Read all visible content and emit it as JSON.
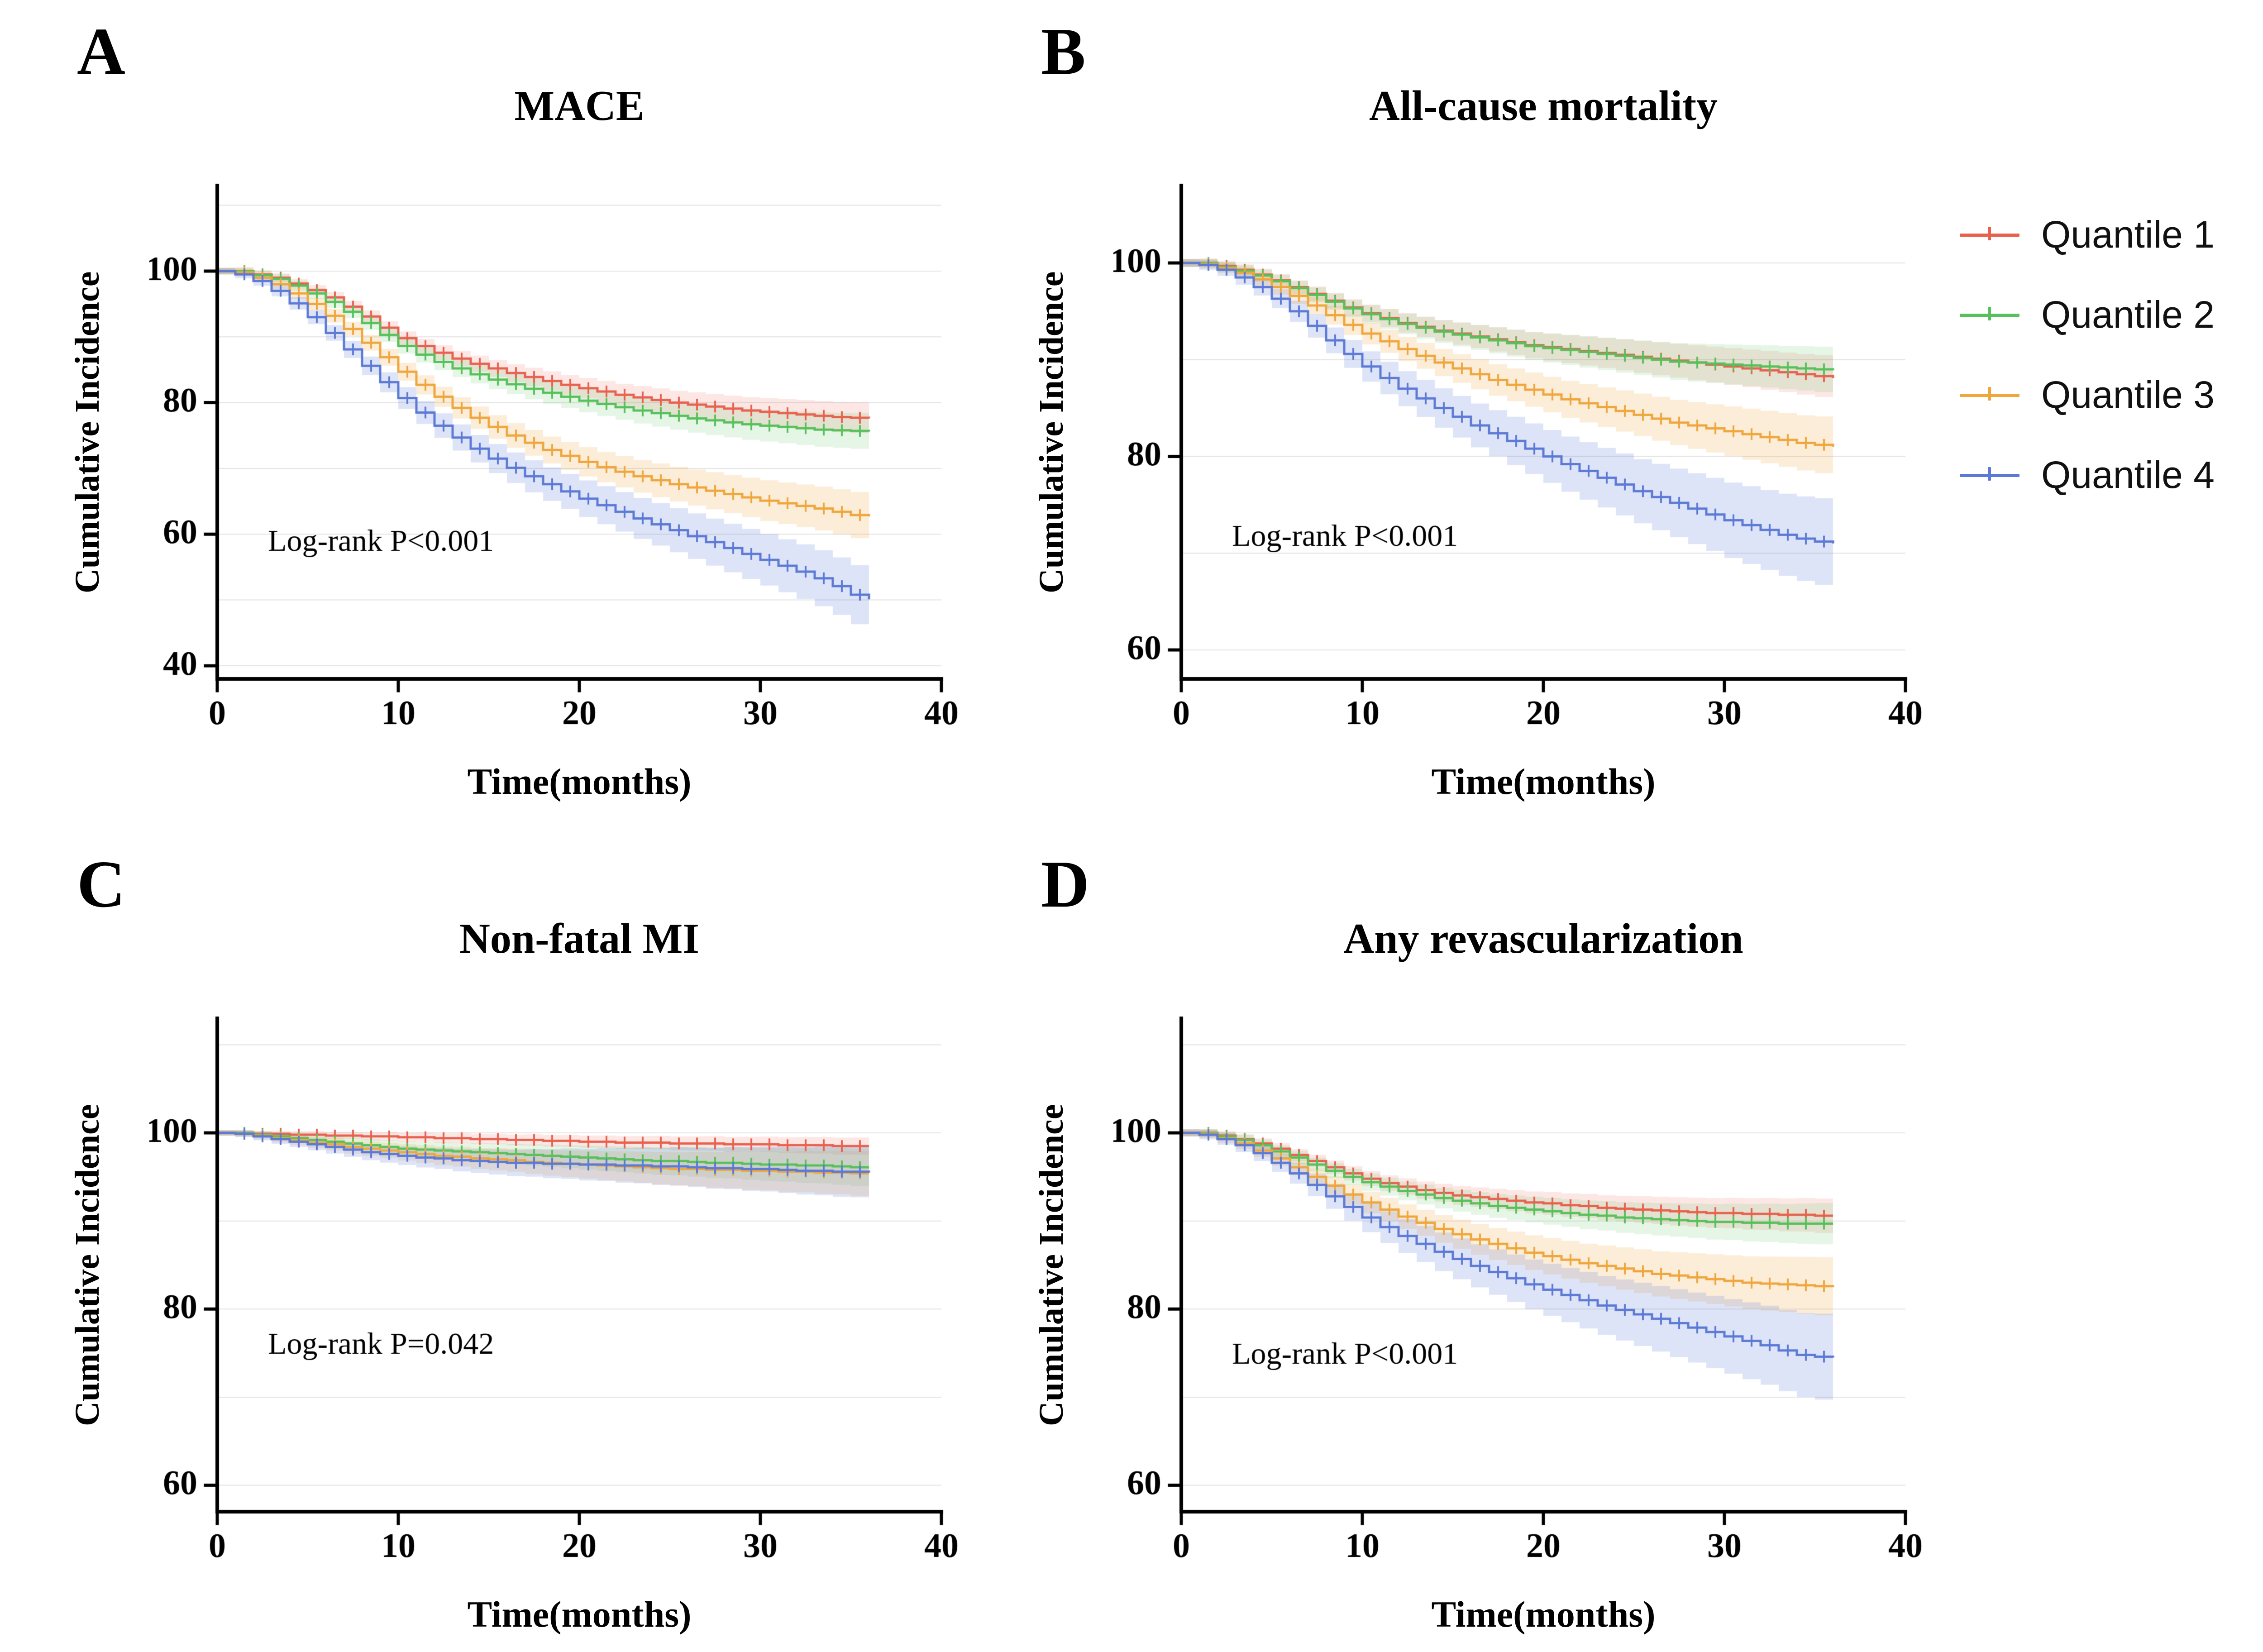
{
  "figure": {
    "background": "#ffffff"
  },
  "legend": {
    "items": [
      {
        "label": "Quantile 1",
        "color": "#E8614F"
      },
      {
        "label": "Quantile 2",
        "color": "#56C15A"
      },
      {
        "label": "Quantile 3",
        "color": "#EFA63C"
      },
      {
        "label": "Quantile 4",
        "color": "#5B79D6"
      }
    ]
  },
  "chart_data": [
    {
      "type": "line",
      "letter": "A",
      "title": "MACE",
      "xlabel": "Time(months)",
      "ylabel": "Cumulative Incidence",
      "pvalue": "Log-rank P<0.001",
      "pvalue_pos": {
        "fx": 0.07,
        "fy": 0.74
      },
      "xlim": [
        0,
        40
      ],
      "xticks": [
        0,
        10,
        20,
        30,
        40
      ],
      "ylim": [
        38,
        113
      ],
      "yticks": [
        40,
        60,
        80,
        100
      ],
      "gridlines": [
        40,
        50,
        60,
        70,
        80,
        90,
        100,
        110
      ],
      "x_unit": "months 0-36, monthly steps",
      "series": [
        {
          "name": "Quantile 1",
          "color": "#E8614F",
          "band": "rgba(232,97,79,0.15)",
          "ci_base": 0.5,
          "ci_end": 2.4,
          "values": [
            100,
            100,
            99.5,
            99,
            98.1,
            97.1,
            96,
            94.6,
            93.1,
            91.4,
            89.8,
            88.6,
            87.6,
            86.7,
            85.9,
            85.2,
            84.5,
            83.9,
            83.3,
            82.7,
            82.2,
            81.7,
            81.2,
            80.8,
            80.4,
            80,
            79.7,
            79.4,
            79.1,
            78.8,
            78.6,
            78.4,
            78.2,
            78,
            77.8,
            77.7,
            77.6
          ]
        },
        {
          "name": "Quantile 2",
          "color": "#56C15A",
          "band": "rgba(86,193,90,0.15)",
          "ci_base": 0.5,
          "ci_end": 2.8,
          "values": [
            100,
            100,
            99.4,
            98.8,
            97.8,
            96.6,
            95.3,
            93.8,
            92.1,
            90.3,
            88.6,
            87.3,
            86.2,
            85.2,
            84.3,
            83.5,
            82.8,
            82.1,
            81.5,
            80.9,
            80.3,
            79.8,
            79.3,
            78.8,
            78.4,
            78,
            77.6,
            77.3,
            77,
            76.7,
            76.5,
            76.3,
            76.1,
            75.9,
            75.8,
            75.7,
            75.6
          ]
        },
        {
          "name": "Quantile 3",
          "color": "#EFA63C",
          "band": "rgba(239,166,60,0.2)",
          "ci_base": 0.5,
          "ci_end": 3.6,
          "values": [
            100,
            99.8,
            99,
            98,
            96.6,
            95,
            93.2,
            91.2,
            89.1,
            86.9,
            84.7,
            82.7,
            80.9,
            79.2,
            77.7,
            76.3,
            75,
            73.9,
            72.8,
            71.9,
            71,
            70.2,
            69.5,
            68.8,
            68.2,
            67.6,
            67.1,
            66.6,
            66.1,
            65.6,
            65.1,
            64.7,
            64.3,
            63.9,
            63.4,
            62.9,
            62.7
          ]
        },
        {
          "name": "Quantile 4",
          "color": "#5B79D6",
          "band": "rgba(91,121,214,0.2)",
          "ci_base": 0.5,
          "ci_end": 4.6,
          "values": [
            100,
            99.5,
            98.5,
            97,
            95.1,
            93,
            90.6,
            88.1,
            85.6,
            83.1,
            80.7,
            78.5,
            76.5,
            74.7,
            73,
            71.5,
            70.1,
            68.8,
            67.6,
            66.5,
            65.4,
            64.4,
            63.4,
            62.4,
            61.5,
            60.6,
            59.7,
            58.8,
            57.9,
            57,
            56.1,
            55.2,
            54.3,
            53.3,
            52.1,
            50.8,
            50.1
          ]
        }
      ]
    },
    {
      "type": "line",
      "letter": "B",
      "title": "All-cause mortality",
      "xlabel": "Time(months)",
      "ylabel": "Cumulative Incidence",
      "pvalue": "Log-rank P<0.001",
      "pvalue_pos": {
        "fx": 0.07,
        "fy": 0.73
      },
      "xlim": [
        0,
        40
      ],
      "xticks": [
        0,
        10,
        20,
        30,
        40
      ],
      "ylim": [
        57,
        108
      ],
      "yticks": [
        60,
        80,
        100
      ],
      "gridlines": [
        60,
        70,
        80,
        90,
        100
      ],
      "x_unit": "months 0-36, monthly steps",
      "series": [
        {
          "name": "Quantile 1",
          "color": "#E8614F",
          "band": "rgba(232,97,79,0.15)",
          "ci_base": 0.4,
          "ci_end": 2.2,
          "values": [
            100,
            100,
            99.7,
            99.3,
            98.8,
            98.2,
            97.5,
            96.8,
            96.1,
            95.4,
            94.8,
            94.3,
            93.8,
            93.4,
            93,
            92.7,
            92.4,
            92.1,
            91.8,
            91.5,
            91.3,
            91.1,
            90.9,
            90.7,
            90.5,
            90.3,
            90.1,
            89.9,
            89.7,
            89.5,
            89.3,
            89.1,
            88.9,
            88.7,
            88.5,
            88.3,
            88.1
          ]
        },
        {
          "name": "Quantile 2",
          "color": "#56C15A",
          "band": "rgba(86,193,90,0.15)",
          "ci_base": 0.4,
          "ci_end": 2.4,
          "values": [
            100,
            100,
            99.6,
            99.2,
            98.7,
            98.1,
            97.4,
            96.7,
            96,
            95.3,
            94.7,
            94.2,
            93.7,
            93.3,
            92.9,
            92.6,
            92.3,
            92,
            91.7,
            91.4,
            91.2,
            91,
            90.8,
            90.6,
            90.4,
            90.2,
            90,
            89.8,
            89.7,
            89.6,
            89.5,
            89.4,
            89.3,
            89.2,
            89.1,
            89,
            88.9
          ]
        },
        {
          "name": "Quantile 3",
          "color": "#EFA63C",
          "band": "rgba(239,166,60,0.2)",
          "ci_base": 0.4,
          "ci_end": 3.0,
          "values": [
            100,
            99.9,
            99.5,
            99,
            98.3,
            97.5,
            96.6,
            95.6,
            94.6,
            93.6,
            92.7,
            91.9,
            91.1,
            90.4,
            89.7,
            89.1,
            88.5,
            87.9,
            87.4,
            86.9,
            86.4,
            85.9,
            85.5,
            85.1,
            84.7,
            84.3,
            83.9,
            83.5,
            83.2,
            82.9,
            82.6,
            82.3,
            82,
            81.7,
            81.4,
            81.2,
            81
          ]
        },
        {
          "name": "Quantile 4",
          "color": "#5B79D6",
          "band": "rgba(91,121,214,0.2)",
          "ci_base": 0.4,
          "ci_end": 4.6,
          "values": [
            100,
            99.8,
            99.3,
            98.5,
            97.5,
            96.3,
            95,
            93.5,
            92,
            90.6,
            89.3,
            88.1,
            87,
            86,
            85,
            84.1,
            83.2,
            82.4,
            81.6,
            80.8,
            80,
            79.2,
            78.5,
            77.8,
            77.1,
            76.4,
            75.8,
            75.2,
            74.6,
            74,
            73.4,
            72.9,
            72.4,
            71.9,
            71.5,
            71.2,
            71
          ]
        }
      ]
    },
    {
      "type": "line",
      "letter": "C",
      "title": "Non-fatal MI",
      "xlabel": "Time(months)",
      "ylabel": "Cumulative Incidence",
      "pvalue": "Log-rank P=0.042",
      "pvalue_pos": {
        "fx": 0.07,
        "fy": 0.68
      },
      "xlim": [
        0,
        40
      ],
      "xticks": [
        0,
        10,
        20,
        30,
        40
      ],
      "ylim": [
        57,
        113
      ],
      "yticks": [
        60,
        80,
        100
      ],
      "gridlines": [
        60,
        70,
        80,
        90,
        100,
        110
      ],
      "x_unit": "months 0-36, monthly steps",
      "series": [
        {
          "name": "Quantile 1",
          "color": "#E8614F",
          "band": "rgba(232,97,79,0.15)",
          "ci_base": 0.3,
          "ci_end": 1.0,
          "values": [
            100,
            100,
            99.9,
            99.9,
            99.8,
            99.8,
            99.7,
            99.7,
            99.6,
            99.6,
            99.5,
            99.5,
            99.4,
            99.4,
            99.3,
            99.3,
            99.2,
            99.2,
            99.1,
            99.1,
            99,
            99,
            98.9,
            98.9,
            98.9,
            98.8,
            98.8,
            98.8,
            98.7,
            98.7,
            98.7,
            98.6,
            98.6,
            98.6,
            98.5,
            98.5,
            98.5
          ]
        },
        {
          "name": "Quantile 2",
          "color": "#56C15A",
          "band": "rgba(86,193,90,0.15)",
          "ci_base": 0.3,
          "ci_end": 2.2,
          "values": [
            100,
            100,
            99.8,
            99.6,
            99.4,
            99.2,
            99,
            98.8,
            98.6,
            98.4,
            98.2,
            98.1,
            98,
            97.9,
            97.8,
            97.7,
            97.6,
            97.5,
            97.4,
            97.3,
            97.2,
            97.1,
            97,
            96.9,
            96.8,
            96.8,
            96.7,
            96.6,
            96.6,
            96.5,
            96.4,
            96.4,
            96.3,
            96.3,
            96.2,
            96.1,
            96.1
          ]
        },
        {
          "name": "Quantile 3",
          "color": "#EFA63C",
          "band": "rgba(239,166,60,0.2)",
          "ci_base": 0.3,
          "ci_end": 2.6,
          "values": [
            100,
            99.9,
            99.7,
            99.4,
            99.2,
            98.9,
            98.7,
            98.4,
            98.2,
            98,
            97.8,
            97.6,
            97.4,
            97.3,
            97.1,
            97,
            96.9,
            96.7,
            96.6,
            96.5,
            96.4,
            96.3,
            96.2,
            96.1,
            96,
            95.9,
            95.9,
            95.8,
            95.8,
            95.7,
            95.7,
            95.6,
            95.6,
            95.5,
            95.5,
            95.4,
            95.4
          ]
        },
        {
          "name": "Quantile 4",
          "color": "#5B79D6",
          "band": "rgba(91,121,214,0.2)",
          "ci_base": 0.3,
          "ci_end": 3.0,
          "values": [
            100,
            99.9,
            99.6,
            99.3,
            99,
            98.7,
            98.4,
            98.1,
            97.8,
            97.6,
            97.4,
            97.2,
            97.1,
            96.9,
            96.8,
            96.7,
            96.6,
            96.6,
            96.5,
            96.5,
            96.4,
            96.4,
            96.3,
            96.3,
            96.2,
            96.2,
            96.1,
            96,
            96,
            95.9,
            95.9,
            95.8,
            95.7,
            95.7,
            95.6,
            95.6,
            95.5
          ]
        }
      ]
    },
    {
      "type": "line",
      "letter": "D",
      "title": "Any revascularization",
      "xlabel": "Time(months)",
      "ylabel": "Cumulative Incidence",
      "pvalue": "Log-rank P<0.001",
      "pvalue_pos": {
        "fx": 0.07,
        "fy": 0.7
      },
      "xlim": [
        0,
        40
      ],
      "xticks": [
        0,
        10,
        20,
        30,
        40
      ],
      "ylim": [
        57,
        113
      ],
      "yticks": [
        60,
        80,
        100
      ],
      "gridlines": [
        60,
        70,
        80,
        90,
        100,
        110
      ],
      "x_unit": "months 0-36, monthly steps",
      "series": [
        {
          "name": "Quantile 1",
          "color": "#E8614F",
          "band": "rgba(232,97,79,0.15)",
          "ci_base": 0.4,
          "ci_end": 2.0,
          "values": [
            100,
            100,
            99.7,
            99.3,
            98.8,
            98.2,
            97.5,
            96.8,
            96.1,
            95.4,
            94.8,
            94.3,
            93.9,
            93.5,
            93.2,
            92.9,
            92.7,
            92.5,
            92.3,
            92.1,
            92,
            91.8,
            91.7,
            91.5,
            91.4,
            91.3,
            91.2,
            91.1,
            91,
            90.9,
            90.9,
            90.8,
            90.8,
            90.7,
            90.7,
            90.6,
            90.6
          ]
        },
        {
          "name": "Quantile 2",
          "color": "#56C15A",
          "band": "rgba(86,193,90,0.15)",
          "ci_base": 0.4,
          "ci_end": 2.4,
          "values": [
            100,
            100,
            99.6,
            99.2,
            98.6,
            97.9,
            97.2,
            96.4,
            95.7,
            95,
            94.4,
            93.9,
            93.4,
            93,
            92.6,
            92.3,
            92,
            91.7,
            91.5,
            91.3,
            91.1,
            90.9,
            90.7,
            90.6,
            90.4,
            90.3,
            90.2,
            90.1,
            90,
            89.9,
            89.9,
            89.8,
            89.8,
            89.7,
            89.7,
            89.7,
            89.7
          ]
        },
        {
          "name": "Quantile 3",
          "color": "#EFA63C",
          "band": "rgba(239,166,60,0.2)",
          "ci_base": 0.4,
          "ci_end": 3.4,
          "values": [
            100,
            99.9,
            99.4,
            98.8,
            98,
            97.1,
            96.1,
            95,
            94,
            93,
            92.1,
            91.3,
            90.5,
            89.8,
            89.1,
            88.5,
            87.9,
            87.4,
            86.9,
            86.4,
            86,
            85.6,
            85.2,
            84.9,
            84.6,
            84.3,
            84,
            83.8,
            83.6,
            83.4,
            83.2,
            83,
            82.9,
            82.8,
            82.7,
            82.6,
            82.5
          ]
        },
        {
          "name": "Quantile 4",
          "color": "#5B79D6",
          "band": "rgba(91,121,214,0.2)",
          "ci_base": 0.4,
          "ci_end": 5.0,
          "values": [
            100,
            99.8,
            99.3,
            98.6,
            97.7,
            96.6,
            95.4,
            94.1,
            92.8,
            91.6,
            90.4,
            89.3,
            88.3,
            87.4,
            86.5,
            85.7,
            84.9,
            84.2,
            83.5,
            82.8,
            82.2,
            81.6,
            81,
            80.4,
            79.9,
            79.4,
            78.9,
            78.4,
            77.9,
            77.4,
            76.9,
            76.4,
            75.9,
            75.3,
            74.8,
            74.6,
            74.5
          ]
        }
      ]
    }
  ]
}
